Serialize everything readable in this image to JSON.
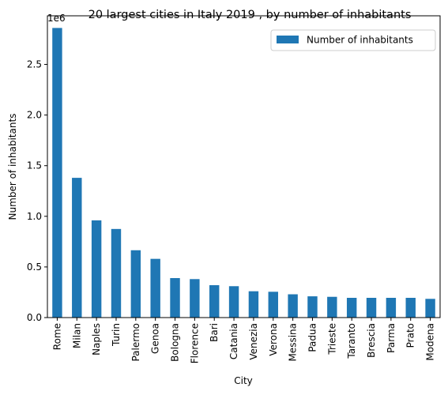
{
  "chart_data": {
    "type": "bar",
    "title": "20 largest cities in Italy 2019 , by number of inhabitants",
    "xlabel": "City",
    "ylabel": "Number of inhabitants",
    "offset_label": "1e6",
    "legend_position": "top-right",
    "grid": false,
    "ylim": [
      0,
      2.98
    ],
    "yticks": [
      "0.0",
      "0.5",
      "1.0",
      "1.5",
      "2.0",
      "2.5"
    ],
    "categories": [
      "Rome",
      "Milan",
      "Naples",
      "Turin",
      "Palermo",
      "Genoa",
      "Bologna",
      "Florence",
      "Bari",
      "Catania",
      "Venezia",
      "Verona",
      "Messina",
      "Padua",
      "Trieste",
      "Taranto",
      "Brescia",
      "Parma",
      "Prato",
      "Modena"
    ],
    "series": [
      {
        "name": "Number of inhabitants",
        "color": "#1f77b4",
        "values": [
          2.86,
          1.38,
          0.96,
          0.875,
          0.665,
          0.58,
          0.39,
          0.38,
          0.32,
          0.31,
          0.26,
          0.255,
          0.23,
          0.21,
          0.205,
          0.195,
          0.195,
          0.195,
          0.195,
          0.185
        ]
      }
    ]
  }
}
